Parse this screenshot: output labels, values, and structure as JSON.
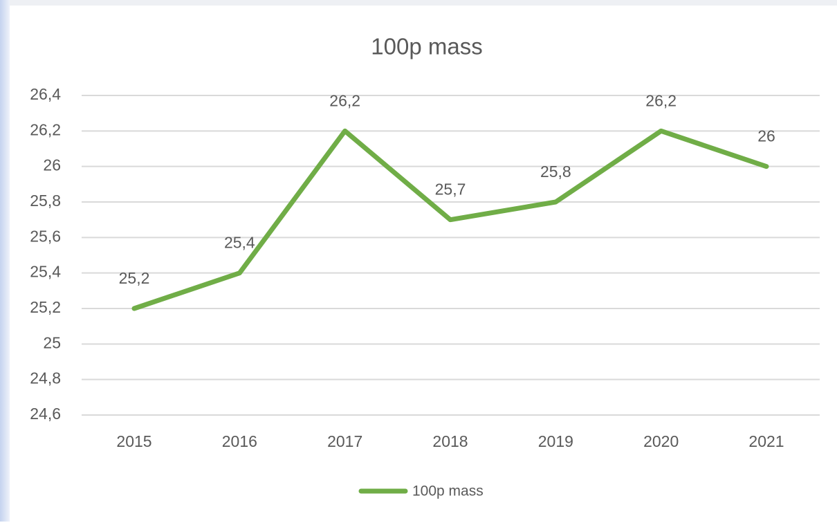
{
  "chart_data": {
    "type": "line",
    "title": "100p mass",
    "categories": [
      "2015",
      "2016",
      "2017",
      "2018",
      "2019",
      "2020",
      "2021"
    ],
    "series": [
      {
        "name": "100p mass",
        "color": "#70ad47",
        "values": [
          25.2,
          25.4,
          26.2,
          25.7,
          25.8,
          26.2,
          26
        ],
        "value_labels": [
          "25,2",
          "25,4",
          "26,2",
          "25,7",
          "25,8",
          "26,2",
          "26"
        ]
      }
    ],
    "ylim": [
      24.6,
      26.4
    ],
    "yticks": [
      {
        "value": 24.6,
        "label": "24,6"
      },
      {
        "value": 24.8,
        "label": "24,8"
      },
      25,
      {
        "value": 25.2,
        "label": "25,2"
      },
      {
        "value": 25.4,
        "label": "25,4"
      },
      {
        "value": 25.6,
        "label": "25,6"
      },
      {
        "value": 25.8,
        "label": "25,8"
      },
      26,
      {
        "value": 26.2,
        "label": "26,2"
      },
      {
        "value": 26.4,
        "label": "26,4"
      }
    ],
    "grid": true,
    "legend": "bottom"
  }
}
